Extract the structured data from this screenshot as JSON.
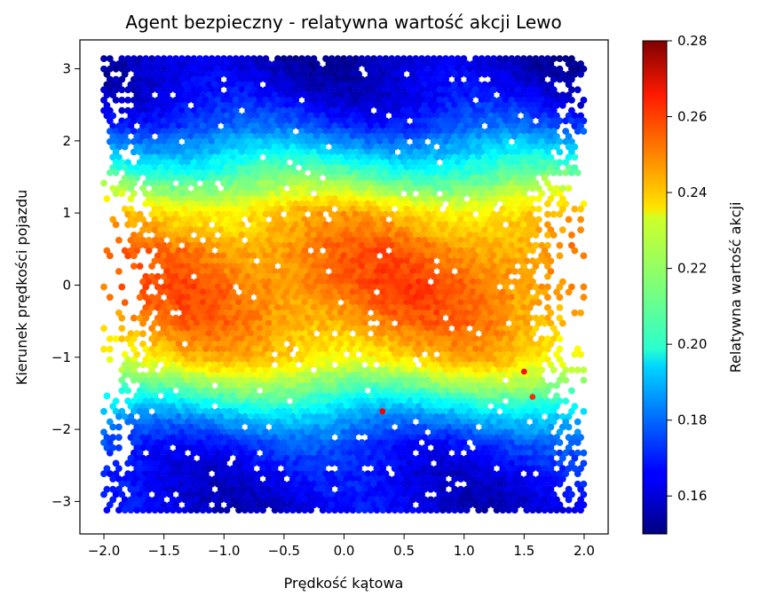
{
  "chart_data": {
    "type": "heatmap",
    "subtype": "hexbin",
    "title": "Agent bezpieczny - relatywna wartość akcji Lewo",
    "xlabel": "Prędkość kątowa",
    "ylabel": "Kierunek prędkości pojazdu",
    "xlim": [
      -2.2,
      2.2
    ],
    "ylim": [
      -3.45,
      3.4
    ],
    "xticks": [
      -2.0,
      -1.5,
      -1.0,
      -0.5,
      0.0,
      0.5,
      1.0,
      1.5,
      2.0
    ],
    "xtick_labels": [
      "−2.0",
      "−1.5",
      "−1.0",
      "−0.5",
      "0.0",
      "0.5",
      "1.0",
      "1.5",
      "2.0"
    ],
    "yticks": [
      3,
      2,
      1,
      0,
      -1,
      -2,
      -3
    ],
    "ytick_labels": [
      "3",
      "2",
      "1",
      "0",
      "−1",
      "−2",
      "−3"
    ],
    "grid": false,
    "colormap": "jet",
    "colorbar": {
      "label": "Relatywna wartość akcji",
      "vmin": 0.15,
      "vmax": 0.28,
      "ticks": [
        0.16,
        0.18,
        0.2,
        0.22,
        0.24,
        0.26,
        0.28
      ],
      "tick_labels": [
        "0.16",
        "0.18",
        "0.20",
        "0.22",
        "0.24",
        "0.26",
        "0.28"
      ],
      "placement": "right"
    },
    "value_profile_by_y": {
      "y": [
        -3.14,
        -2.6,
        -2.2,
        -1.8,
        -1.4,
        -1.0,
        -0.5,
        0.0,
        0.5,
        1.0,
        1.4,
        1.8,
        2.2,
        2.6,
        3.14
      ],
      "value": [
        0.162,
        0.165,
        0.172,
        0.19,
        0.215,
        0.235,
        0.245,
        0.249,
        0.246,
        0.236,
        0.216,
        0.195,
        0.175,
        0.164,
        0.158
      ]
    },
    "x_data_range": [
      -2.0,
      2.0
    ],
    "y_data_range": [
      -3.14,
      3.14
    ],
    "outliers": [
      {
        "x": 0.32,
        "y": -1.75,
        "value": 0.265
      },
      {
        "x": 1.5,
        "y": -1.2,
        "value": 0.262
      },
      {
        "x": 1.57,
        "y": -1.55,
        "value": 0.258
      }
    ]
  }
}
